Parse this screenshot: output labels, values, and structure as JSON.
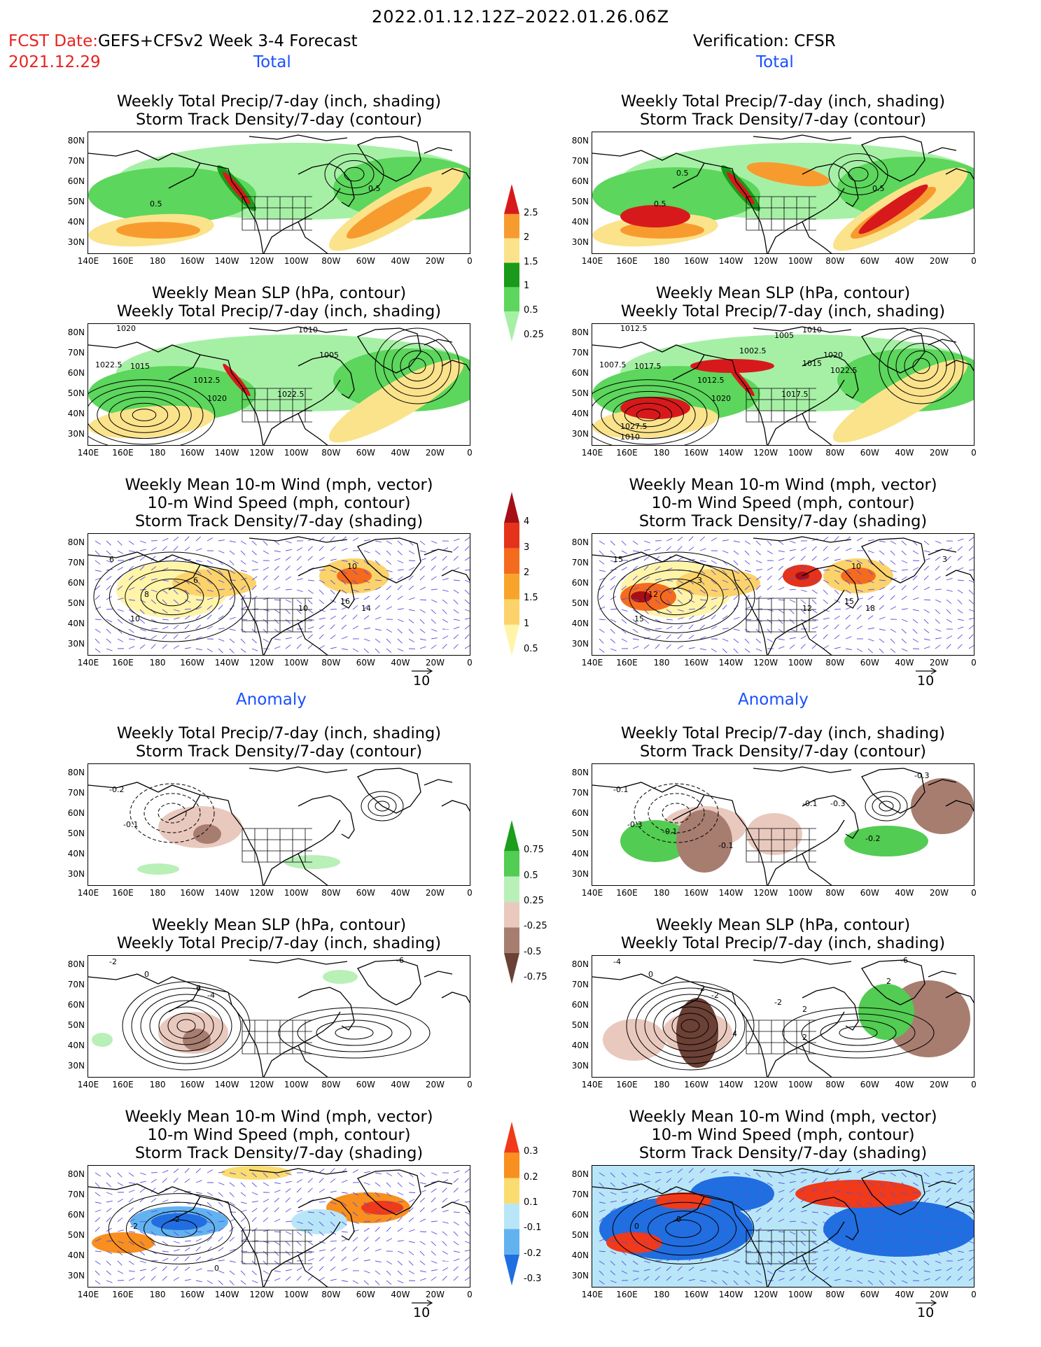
{
  "header": {
    "date_range": "2022.01.12.12Z–2022.01.26.06Z",
    "fcst_label": "FCST Date:",
    "fcst_product": "GEFS+CFSv2 Week 3-4 Forecast",
    "fcst_date": "2021.12.29",
    "verification": "Verification: CFSR",
    "section_total": "Total",
    "section_anomaly": "Anomaly"
  },
  "panel_titles": {
    "precip_storm": [
      "Weekly Total Precip/7-day (inch, shading)",
      "Storm Track Density/7-day (contour)"
    ],
    "slp_precip": [
      "Weekly Mean SLP (hPa, contour)",
      "Weekly Total Precip/7-day (inch, shading)"
    ],
    "wind_storm": [
      "Weekly Mean 10-m Wind (mph, vector)",
      "10-m Wind Speed (mph, contour)",
      "Storm Track Density/7-day (shading)"
    ]
  },
  "axes": {
    "lat_labels": [
      "80N",
      "70N",
      "60N",
      "50N",
      "40N",
      "30N"
    ],
    "lon_labels": [
      "140E",
      "160E",
      "180",
      "160W",
      "140W",
      "120W",
      "100W",
      "80W",
      "60W",
      "40W",
      "20W",
      "0"
    ]
  },
  "vector_reference": "10",
  "colorbars": {
    "precip_total": {
      "labels": [
        "2.5",
        "2",
        "1.5",
        "1",
        "0.5",
        "0.25"
      ],
      "colors": [
        "#d7191c",
        "#f89b2e",
        "#fbe38c",
        "#1a9a1a",
        "#5cd65c",
        "#a6f0a6"
      ]
    },
    "storm_total": {
      "labels": [
        "4",
        "3",
        "2",
        "1.5",
        "1",
        "0.5"
      ],
      "colors": [
        "#a50f15",
        "#e4331a",
        "#f56b1e",
        "#f8a42a",
        "#fcd36b",
        "#fff4a8"
      ]
    },
    "precip_anom": {
      "labels": [
        "0.75",
        "0.5",
        "0.25",
        "-0.25",
        "-0.5",
        "-0.75"
      ],
      "colors": [
        "#1b9e1b",
        "#52cc52",
        "#b8f0b8",
        "#e9c9be",
        "#a77d70",
        "#6b4035"
      ]
    },
    "storm_anom": {
      "labels": [
        "0.3",
        "0.2",
        "0.1",
        "-0.1",
        "-0.2",
        "-0.3"
      ],
      "colors": [
        "#f03a1a",
        "#f88f1e",
        "#fbdc70",
        "#b8e6f8",
        "#63b2f0",
        "#1f6fe0"
      ]
    }
  },
  "map_labels": {
    "fc_precip_storm": [
      "0.5",
      "0.5"
    ],
    "vf_precip_storm": [
      "0.5",
      "0.5",
      "0.5"
    ],
    "fc_slp": [
      "1020",
      "1010",
      "1022.5",
      "1015",
      "1005",
      "1012.5",
      "1020",
      "1022.5"
    ],
    "vf_slp": [
      "1012.5",
      "1010",
      "1007.5",
      "1017.5",
      "1020",
      "1012.5",
      "1020",
      "1017.5",
      "1002.5",
      "1005",
      "1015",
      "1022.5",
      "1027.5",
      "1010"
    ],
    "fc_wind": [
      "6",
      "8",
      "6",
      "10",
      "10",
      "16",
      "14",
      "10"
    ],
    "vf_wind": [
      "15",
      "12",
      "3",
      "10",
      "12",
      "15",
      "18",
      "15",
      "3"
    ],
    "fc_anom_precip": [
      "-0.2",
      "-0.1"
    ],
    "vf_anom_precip": [
      "-0.1",
      "-0.3",
      "-0.1",
      "-0.1",
      "-0.1",
      "-0.3",
      "-0.2",
      "-0.3"
    ],
    "fc_anom_slp": [
      "-2",
      "0",
      "-6",
      "-4",
      "-6"
    ],
    "vf_anom_slp": [
      "-4",
      "0",
      "-2",
      "-2",
      "-6",
      "2",
      "4",
      "2",
      "-2",
      "2"
    ],
    "fc_anom_wind": [
      "-2",
      "-2",
      "0"
    ],
    "vf_anom_wind": [
      "0",
      "0"
    ]
  }
}
